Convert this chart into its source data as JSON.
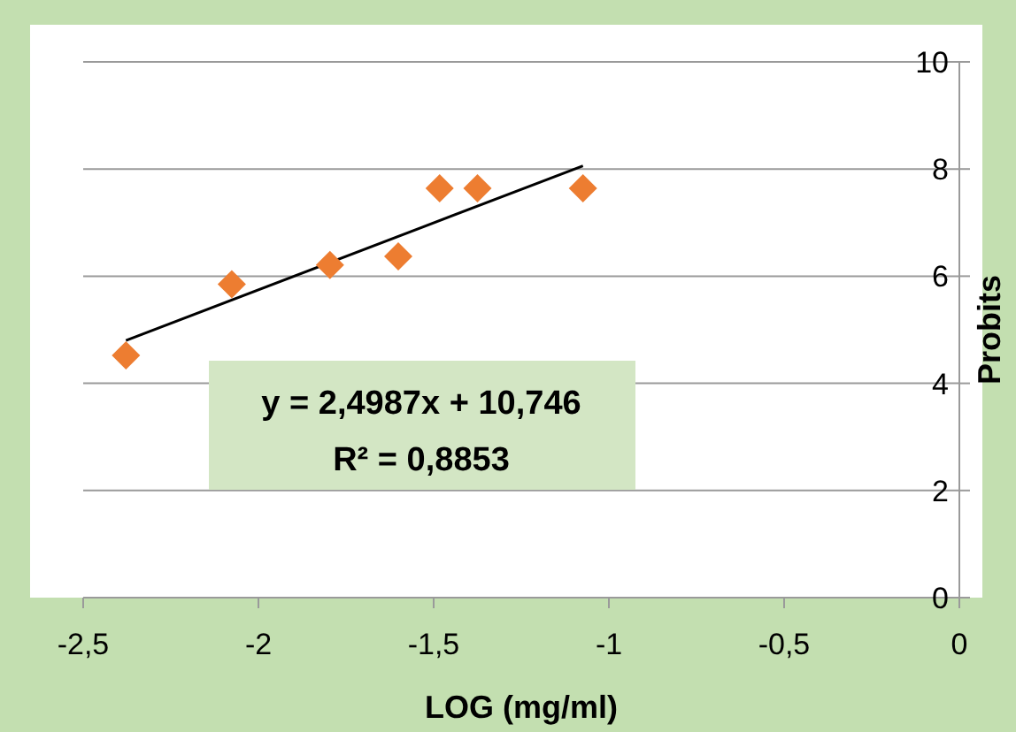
{
  "chart_data": {
    "type": "scatter",
    "xlabel": "LOG (mg/ml)",
    "ylabel": "Probits",
    "xlim": [
      -2.5,
      0
    ],
    "xticks": [
      {
        "value": -2.5,
        "label": "-2,5"
      },
      {
        "value": -2,
        "label": "-2"
      },
      {
        "value": -1.5,
        "label": "-1,5"
      },
      {
        "value": -1,
        "label": "-1"
      },
      {
        "value": -0.5,
        "label": "-0,5"
      },
      {
        "value": 0,
        "label": "0"
      }
    ],
    "ylim": [
      0,
      10
    ],
    "yticks": [
      0,
      2,
      4,
      6,
      8,
      10
    ],
    "grid": "y",
    "series": [
      {
        "color": "#ed7d31",
        "marker": "diamond",
        "x": [
          -2.378,
          -2.076,
          -1.796,
          -1.601,
          -1.483,
          -1.375,
          -1.074
        ],
        "values": [
          4.52,
          5.85,
          6.21,
          6.37,
          7.64,
          7.64,
          7.64
        ]
      },
      {
        "type": "line",
        "color": "#000000",
        "line_style": "solid",
        "x": [
          -2.378,
          -1.074
        ],
        "values": [
          4.8,
          8.06
        ]
      }
    ],
    "annotations": [
      "y = 2,4987x + 10,746",
      "R² = 0,8853"
    ]
  }
}
